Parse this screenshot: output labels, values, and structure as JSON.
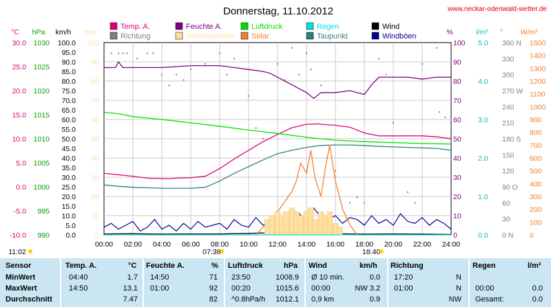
{
  "site_url": "www.neckar-odenwald-wetter.de",
  "chart_data": {
    "type": "line",
    "title": "Donnerstag, 11.10.2012",
    "x_ticks": [
      "00:00",
      "02:00",
      "04:00",
      "06:00",
      "08:00",
      "10:00",
      "12:00",
      "14:00",
      "16:00",
      "18:00",
      "20:00",
      "22:00",
      "24:00"
    ],
    "legend": [
      {
        "label": "Temp. A.",
        "color": "#e0007a"
      },
      {
        "label": "Feuchte A.",
        "color": "#800080"
      },
      {
        "label": "Luftdruck",
        "color": "#00e000"
      },
      {
        "label": "Regen",
        "color": "#00e0e0"
      },
      {
        "label": "Wind",
        "color": "#000000"
      },
      {
        "label": "Richtung",
        "color": "#808080"
      },
      {
        "label": "Sonnenschein",
        "color": "#ffe0a0"
      },
      {
        "label": "Solar",
        "color": "#f08030"
      },
      {
        "label": "Taupunkt",
        "color": "#308080"
      },
      {
        "label": "Windböen",
        "color": "#00008c"
      }
    ],
    "axes": {
      "temp": {
        "unit": "°C",
        "color": "#e0007a",
        "min": -10,
        "max": 30,
        "ticks": [
          "30.0",
          "25.0",
          "20.0",
          "15.0",
          "10.0",
          "5.0",
          "0.0",
          "-5.0",
          "-10.0"
        ]
      },
      "pressure": {
        "unit": "hPa",
        "color": "#00a000",
        "min": 990,
        "max": 1030,
        "ticks": [
          "1030",
          "1025",
          "1020",
          "1015",
          "1010",
          "1005",
          "1000",
          "995",
          "990"
        ]
      },
      "wind": {
        "unit": "km/h",
        "color": "#000000",
        "min": 0,
        "max": 100,
        "ticks": [
          "100.0",
          "95.0",
          "90.0",
          "85.0",
          "80.0",
          "75.0",
          "70.0",
          "65.0",
          "60.0",
          "55.0",
          "50.0",
          "45.0",
          "40.0",
          "35.0",
          "30.0",
          "25.0",
          "20.0",
          "15.0",
          "10.0",
          "5.0",
          "0.0"
        ]
      },
      "sun": {
        "unit": "min",
        "color": "#ffe0a0",
        "min": 0,
        "max": 100,
        "ticks": [
          "100",
          "90",
          "80",
          "70",
          "60",
          "50",
          "40",
          "30",
          "20",
          "10",
          "0"
        ]
      },
      "humidity": {
        "unit": "%",
        "color": "#800080",
        "min": 0,
        "max": 100,
        "ticks": [
          "100",
          "90",
          "80",
          "70",
          "60",
          "50",
          "40",
          "30",
          "20",
          "10",
          "0"
        ]
      },
      "rain": {
        "unit": "l/m²",
        "color": "#00c0c0",
        "min": 0,
        "max": 5,
        "ticks": [
          "5.0",
          "4.0",
          "3.0",
          "2.0",
          "1.0",
          "0.0"
        ]
      },
      "direction": {
        "unit": "°",
        "color": "#808080",
        "min": 0,
        "max": 360,
        "ticks": [
          "360 N",
          "330",
          "300",
          "270 W",
          "240",
          "210",
          "180 S",
          "150",
          "120",
          "90 O",
          "60",
          "30",
          "0 N"
        ]
      },
      "solar": {
        "unit": "W/m²",
        "color": "#f08030",
        "min": 0,
        "max": 1500,
        "ticks": [
          "1500",
          "1400",
          "1300",
          "1200",
          "1100",
          "1000",
          "900",
          "800",
          "700",
          "600",
          "500",
          "400",
          "300",
          "200",
          "100",
          "0"
        ]
      }
    },
    "series": [
      {
        "name": "Temp. A.",
        "color": "#e0007a",
        "x": [
          0,
          1,
          2,
          3,
          4,
          4.67,
          5,
          6,
          7,
          8,
          9,
          10,
          11,
          12,
          13,
          14,
          14.83,
          15,
          16,
          17,
          18,
          19,
          20,
          21,
          22,
          23,
          24
        ],
        "values": [
          2.8,
          2.5,
          2.2,
          1.8,
          1.7,
          1.7,
          1.8,
          1.9,
          2.2,
          3.8,
          5.8,
          7.6,
          9.4,
          10.9,
          12.3,
          13.0,
          13.1,
          13.0,
          12.8,
          12.4,
          11.2,
          10.6,
          10.6,
          10.6,
          10.6,
          10.4,
          10.0
        ]
      },
      {
        "name": "Taupunkt",
        "color": "#308080",
        "x": [
          0,
          1,
          2,
          3,
          4,
          5,
          6,
          7,
          8,
          9,
          10,
          11,
          12,
          13,
          14,
          15,
          16,
          17,
          18,
          19,
          20,
          21,
          22,
          23,
          24
        ],
        "values": [
          0.4,
          0.1,
          -0.1,
          -0.2,
          -0.3,
          -0.3,
          -0.3,
          -0.1,
          1.2,
          2.8,
          4.2,
          5.6,
          6.9,
          7.6,
          8.2,
          8.6,
          8.7,
          8.7,
          8.6,
          8.4,
          8.3,
          8.2,
          8.1,
          8.0,
          7.6
        ]
      },
      {
        "name": "Feuchte A.",
        "color": "#800080",
        "x": [
          0,
          0.8,
          1,
          1.3,
          2,
          4,
          6,
          8,
          9,
          10,
          11,
          11.5,
          12,
          13,
          14,
          14.5,
          15,
          16,
          17,
          18,
          18.5,
          19,
          20,
          21,
          22,
          23,
          24
        ],
        "values": [
          87,
          87,
          90,
          87,
          87,
          87,
          88,
          88,
          87,
          86,
          85,
          84,
          82,
          78,
          74,
          71,
          74,
          74,
          75,
          73,
          78,
          82,
          82,
          82,
          81,
          82,
          82
        ]
      },
      {
        "name": "Luftdruck",
        "color": "#00e000",
        "x": [
          0,
          1,
          2,
          4,
          6,
          8,
          10,
          12,
          14,
          16,
          18,
          20,
          22,
          24
        ],
        "values": [
          1015.5,
          1015.2,
          1014.6,
          1014.0,
          1013.3,
          1012.6,
          1011.8,
          1011.1,
          1010.3,
          1009.7,
          1009.4,
          1009.2,
          1009.0,
          1008.9
        ]
      },
      {
        "name": "Wind",
        "color": "#000000",
        "x": [
          0,
          2,
          4,
          6,
          8,
          10,
          12,
          14,
          15,
          16,
          18,
          20,
          22,
          24
        ],
        "values": [
          0.5,
          0.6,
          0.4,
          0.5,
          0.5,
          0.8,
          1.2,
          1.3,
          1.0,
          0.6,
          0.4,
          0.5,
          0.4,
          0.2
        ]
      },
      {
        "name": "Windböen",
        "color": "#00008c",
        "x": [
          0,
          0.5,
          1,
          1.5,
          2,
          2.5,
          3,
          3.5,
          4,
          4.5,
          5,
          5.5,
          6,
          6.5,
          7,
          7.5,
          8,
          8.5,
          9,
          9.5,
          10,
          10.5,
          11,
          11.5,
          12,
          12.5,
          13,
          13.5,
          14,
          14.5,
          15,
          15.5,
          16,
          16.5,
          17,
          17.5,
          18,
          18.5,
          19,
          19.5,
          20,
          20.5,
          21,
          21.5,
          22,
          22.5,
          23,
          23.5,
          24
        ],
        "values": [
          4,
          6,
          3,
          5,
          7,
          2,
          4,
          8,
          3,
          5,
          2,
          6,
          3,
          7,
          4,
          5,
          6,
          3,
          8,
          5,
          4,
          9,
          5,
          7,
          6,
          10,
          8,
          11,
          7,
          14,
          9,
          8,
          10,
          6,
          9,
          8,
          5,
          10,
          6,
          8,
          5,
          11,
          7,
          6,
          9,
          5,
          8,
          6,
          3
        ]
      },
      {
        "name": "Solar",
        "color": "#f08030",
        "x": [
          10.5,
          11,
          11.5,
          12,
          12.5,
          13,
          13.3,
          13.6,
          14,
          14.3,
          14.6,
          15,
          15.3,
          15.6,
          16,
          16.5,
          17,
          17.5
        ],
        "values": [
          0,
          60,
          100,
          180,
          260,
          340,
          420,
          560,
          480,
          660,
          440,
          300,
          520,
          700,
          420,
          200,
          80,
          0
        ]
      },
      {
        "name": "Sonnenschein",
        "color": "#ffe0a0",
        "x": [
          11.3,
          11.6,
          12,
          12.3,
          12.6,
          13,
          13.3,
          13.6,
          14,
          14.3,
          14.6,
          15,
          15.3,
          15.6,
          16,
          16.3
        ],
        "values": [
          8,
          10,
          12,
          10,
          12,
          14,
          12,
          10,
          12,
          14,
          8,
          12,
          10,
          12,
          6,
          4
        ]
      },
      {
        "name": "Richtung",
        "color": "#808080",
        "x": [
          0.5,
          1,
          1.3,
          1.6,
          2.3,
          3,
          3.4,
          4,
          4.5,
          5,
          5.5,
          6,
          7,
          8,
          8.5,
          9,
          10,
          10.5,
          11,
          12,
          12.5,
          13,
          13.5,
          14,
          14.3,
          15,
          16,
          17,
          17.5,
          18,
          19,
          19.5,
          20,
          21,
          21.5,
          22,
          23,
          23.2,
          23.6
        ],
        "values": [
          340,
          340,
          340,
          340,
          330,
          340,
          340,
          300,
          280,
          300,
          290,
          310,
          320,
          340,
          300,
          330,
          260,
          200,
          180,
          320,
          290,
          350,
          300,
          340,
          310,
          280,
          120,
          60,
          70,
          60,
          330,
          300,
          210,
          80,
          60,
          320,
          350,
          230,
          220
        ]
      },
      {
        "name": "Regen",
        "color": "#00e0e0",
        "x": [
          0,
          24
        ],
        "values": [
          0,
          0
        ]
      }
    ],
    "sun_events": {
      "sunrise": "07:38",
      "sunset": "18:40",
      "daylength": "11:02"
    }
  },
  "table": {
    "headers": [
      "Sensor",
      "Temp. A.",
      "°C",
      "Feuchte A.",
      "%",
      "Luftdruck",
      "hPa",
      "Wind",
      "km/h",
      "Richtung",
      "Regen",
      "l/m²"
    ],
    "rows": [
      {
        "label": "MinWert",
        "temp_time": "04:40",
        "temp": "1.7",
        "hum_time": "14:50",
        "hum": "71",
        "press_time": "23:50",
        "press": "1008.9",
        "wind_label": "Ø 10 min.",
        "wind": "0.0",
        "dir_time": "17:20",
        "dir": "N",
        "rain_time": "",
        "rain": ""
      },
      {
        "label": "MaxWert",
        "temp_time": "14:50",
        "temp": "13.1",
        "hum_time": "01:00",
        "hum": "92",
        "press_time": "00:20",
        "press": "1015.6",
        "wind_label": "00:00",
        "wind": "NW 3.2",
        "dir_time": "01:00",
        "dir": "N",
        "rain_time": "00:00",
        "rain": "0.0"
      },
      {
        "label": "Durchschnitt",
        "temp_time": "",
        "temp": "7.47",
        "hum_time": "",
        "hum": "82",
        "press_time": "^0.8hPa/h",
        "press": "1012.1",
        "wind_label": "0,9 km",
        "wind": "0.9",
        "dir_time": "",
        "dir": "NW",
        "rain_time": "Gesamt:",
        "rain": "0.0"
      }
    ]
  }
}
